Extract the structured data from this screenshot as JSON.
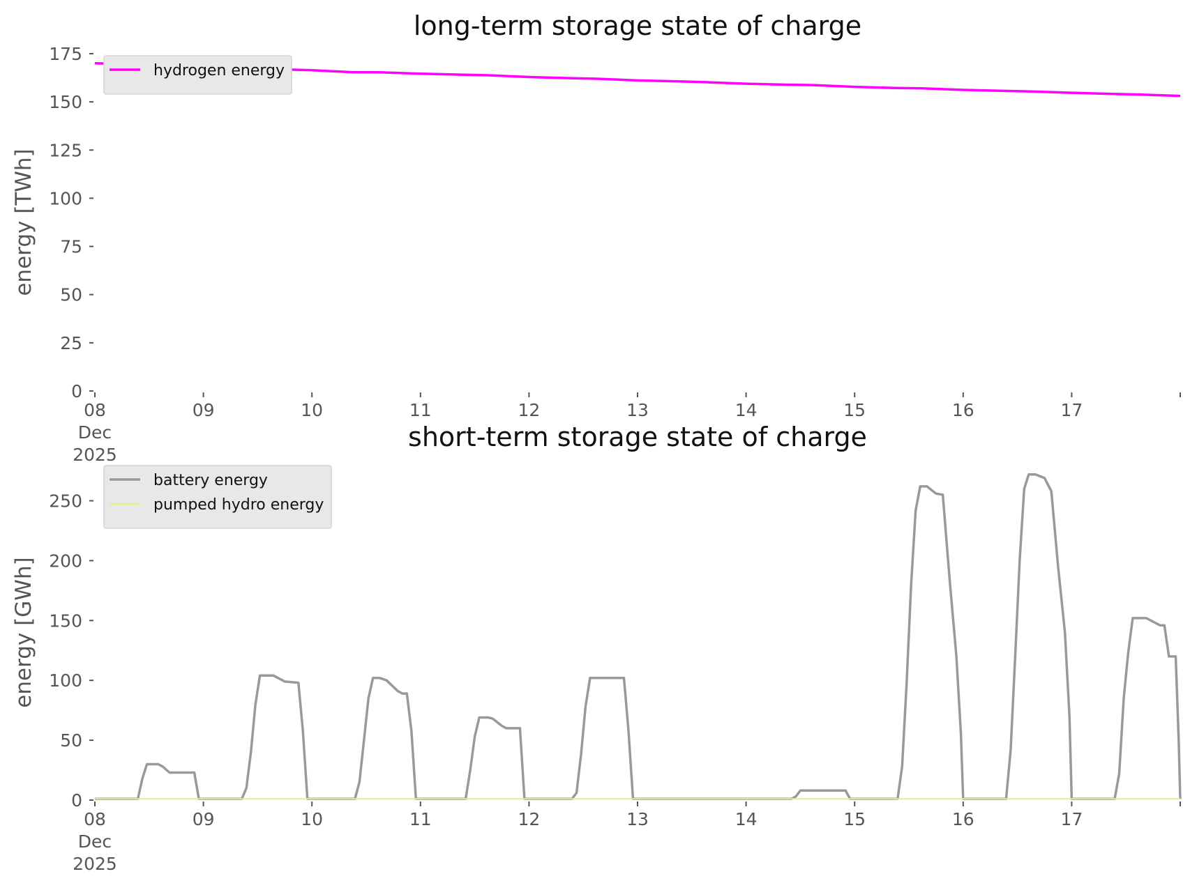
{
  "chart_data": [
    {
      "type": "line",
      "title": "long-term storage state of charge",
      "ylabel": "energy [TWh]",
      "xlabel": "",
      "ylim": [
        0,
        175
      ],
      "yticks": [
        0,
        25,
        50,
        75,
        100,
        125,
        150,
        175
      ],
      "xrange": [
        "2025-12-08",
        "2025-12-18"
      ],
      "xticks": [
        {
          "date": "2025-12-08",
          "label": [
            "08",
            "Dec",
            "2025"
          ]
        },
        {
          "date": "2025-12-09",
          "label": [
            "09"
          ]
        },
        {
          "date": "2025-12-10",
          "label": [
            "10"
          ]
        },
        {
          "date": "2025-12-11",
          "label": [
            "11"
          ]
        },
        {
          "date": "2025-12-12",
          "label": [
            "12"
          ]
        },
        {
          "date": "2025-12-13",
          "label": [
            "13"
          ]
        },
        {
          "date": "2025-12-14",
          "label": [
            "14"
          ]
        },
        {
          "date": "2025-12-15",
          "label": [
            "15"
          ]
        },
        {
          "date": "2025-12-16",
          "label": [
            "16"
          ]
        },
        {
          "date": "2025-12-17",
          "label": [
            "17"
          ]
        },
        {
          "date": "2025-12-18",
          "label": [
            ""
          ]
        }
      ],
      "legend_position": "top-left",
      "grid": false,
      "series": [
        {
          "name": "hydrogen energy",
          "color": "#ff00ff",
          "points": [
            [
              "2025-12-08 00:00",
              170.0
            ],
            [
              "2025-12-08 12:00",
              169.2
            ],
            [
              "2025-12-09 00:00",
              167.9
            ],
            [
              "2025-12-09 12:00",
              167.2
            ],
            [
              "2025-12-10 00:00",
              166.4
            ],
            [
              "2025-12-10 09:00",
              165.4
            ],
            [
              "2025-12-10 15:00",
              165.3
            ],
            [
              "2025-12-11 00:00",
              164.6
            ],
            [
              "2025-12-11 09:00",
              164.1
            ],
            [
              "2025-12-11 15:00",
              163.8
            ],
            [
              "2025-12-12 00:00",
              162.9
            ],
            [
              "2025-12-12 09:00",
              162.3
            ],
            [
              "2025-12-12 15:00",
              162.0
            ],
            [
              "2025-12-13 00:00",
              161.1
            ],
            [
              "2025-12-13 09:00",
              160.6
            ],
            [
              "2025-12-13 15:00",
              160.2
            ],
            [
              "2025-12-14 00:00",
              159.4
            ],
            [
              "2025-12-14 09:00",
              158.9
            ],
            [
              "2025-12-14 15:00",
              158.7
            ],
            [
              "2025-12-15 00:00",
              157.8
            ],
            [
              "2025-12-15 09:00",
              157.2
            ],
            [
              "2025-12-15 15:00",
              157.0
            ],
            [
              "2025-12-16 00:00",
              156.2
            ],
            [
              "2025-12-16 09:00",
              155.7
            ],
            [
              "2025-12-16 15:00",
              155.4
            ],
            [
              "2025-12-17 00:00",
              154.7
            ],
            [
              "2025-12-17 09:00",
              154.1
            ],
            [
              "2025-12-17 15:00",
              153.8
            ],
            [
              "2025-12-18 00:00",
              153.1
            ]
          ]
        }
      ]
    },
    {
      "type": "line",
      "title": "short-term storage state of charge",
      "ylabel": "energy [GWh]",
      "xlabel": "",
      "ylim": [
        0,
        280
      ],
      "yticks": [
        0,
        50,
        100,
        150,
        200,
        250
      ],
      "xrange": [
        "2025-12-08",
        "2025-12-18"
      ],
      "xticks": [
        {
          "date": "2025-12-08",
          "label": [
            "08",
            "Dec",
            "2025"
          ]
        },
        {
          "date": "2025-12-09",
          "label": [
            "09"
          ]
        },
        {
          "date": "2025-12-10",
          "label": [
            "10"
          ]
        },
        {
          "date": "2025-12-11",
          "label": [
            "11"
          ]
        },
        {
          "date": "2025-12-12",
          "label": [
            "12"
          ]
        },
        {
          "date": "2025-12-13",
          "label": [
            "13"
          ]
        },
        {
          "date": "2025-12-14",
          "label": [
            "14"
          ]
        },
        {
          "date": "2025-12-15",
          "label": [
            "15"
          ]
        },
        {
          "date": "2025-12-16",
          "label": [
            "16"
          ]
        },
        {
          "date": "2025-12-17",
          "label": [
            "17"
          ]
        },
        {
          "date": "2025-12-18",
          "label": [
            ""
          ]
        }
      ],
      "legend_position": "top-left",
      "grid": false,
      "series": [
        {
          "name": "battery energy",
          "color": "#999999",
          "points": [
            [
              "2025-12-08 00:00",
              1
            ],
            [
              "2025-12-08 09:30",
              1
            ],
            [
              "2025-12-08 10:30",
              18
            ],
            [
              "2025-12-08 11:30",
              30
            ],
            [
              "2025-12-08 14:00",
              30
            ],
            [
              "2025-12-08 15:00",
              28
            ],
            [
              "2025-12-08 16:30",
              23
            ],
            [
              "2025-12-08 22:00",
              23
            ],
            [
              "2025-12-08 23:00",
              1
            ],
            [
              "2025-12-09 08:30",
              1
            ],
            [
              "2025-12-09 09:30",
              10
            ],
            [
              "2025-12-09 10:30",
              40
            ],
            [
              "2025-12-09 11:30",
              80
            ],
            [
              "2025-12-09 12:30",
              104
            ],
            [
              "2025-12-09 15:30",
              104
            ],
            [
              "2025-12-09 18:00",
              99
            ],
            [
              "2025-12-09 21:00",
              98
            ],
            [
              "2025-12-09 22:00",
              58
            ],
            [
              "2025-12-09 23:00",
              1
            ],
            [
              "2025-12-10 09:30",
              1
            ],
            [
              "2025-12-10 10:30",
              15
            ],
            [
              "2025-12-10 11:30",
              50
            ],
            [
              "2025-12-10 12:30",
              85
            ],
            [
              "2025-12-10 13:30",
              102
            ],
            [
              "2025-12-10 15:00",
              102
            ],
            [
              "2025-12-10 16:30",
              100
            ],
            [
              "2025-12-10 19:00",
              91
            ],
            [
              "2025-12-10 20:00",
              89
            ],
            [
              "2025-12-10 21:00",
              89
            ],
            [
              "2025-12-10 22:00",
              58
            ],
            [
              "2025-12-10 23:00",
              1
            ],
            [
              "2025-12-11 10:00",
              1
            ],
            [
              "2025-12-11 11:00",
              25
            ],
            [
              "2025-12-11 12:00",
              53
            ],
            [
              "2025-12-11 13:00",
              69
            ],
            [
              "2025-12-11 15:00",
              69
            ],
            [
              "2025-12-11 16:00",
              68
            ],
            [
              "2025-12-11 18:00",
              62
            ],
            [
              "2025-12-11 19:00",
              60
            ],
            [
              "2025-12-11 22:00",
              60
            ],
            [
              "2025-12-11 23:00",
              1
            ],
            [
              "2025-12-12 09:30",
              1
            ],
            [
              "2025-12-12 10:30",
              6
            ],
            [
              "2025-12-12 11:30",
              38
            ],
            [
              "2025-12-12 12:30",
              78
            ],
            [
              "2025-12-12 13:30",
              102
            ],
            [
              "2025-12-12 16:00",
              102
            ],
            [
              "2025-12-12 21:00",
              102
            ],
            [
              "2025-12-12 22:00",
              58
            ],
            [
              "2025-12-12 23:00",
              1
            ],
            [
              "2025-12-14 10:00",
              1
            ],
            [
              "2025-12-14 11:00",
              3
            ],
            [
              "2025-12-14 12:00",
              8
            ],
            [
              "2025-12-14 22:00",
              8
            ],
            [
              "2025-12-14 23:00",
              1
            ],
            [
              "2025-12-15 09:30",
              1
            ],
            [
              "2025-12-15 10:30",
              28
            ],
            [
              "2025-12-15 11:30",
              98
            ],
            [
              "2025-12-15 12:30",
              180
            ],
            [
              "2025-12-15 13:30",
              242
            ],
            [
              "2025-12-15 14:30",
              262
            ],
            [
              "2025-12-15 16:00",
              262
            ],
            [
              "2025-12-15 18:00",
              256
            ],
            [
              "2025-12-15 19:30",
              255
            ],
            [
              "2025-12-15 21:00",
              185
            ],
            [
              "2025-12-15 22:30",
              120
            ],
            [
              "2025-12-15 23:30",
              55
            ],
            [
              "2025-12-16 00:00",
              1
            ],
            [
              "2025-12-16 09:30",
              1
            ],
            [
              "2025-12-16 10:30",
              42
            ],
            [
              "2025-12-16 11:30",
              120
            ],
            [
              "2025-12-16 12:30",
              200
            ],
            [
              "2025-12-16 13:30",
              260
            ],
            [
              "2025-12-16 14:30",
              272
            ],
            [
              "2025-12-16 16:00",
              272
            ],
            [
              "2025-12-16 18:00",
              269
            ],
            [
              "2025-12-16 19:30",
              258
            ],
            [
              "2025-12-16 21:00",
              195
            ],
            [
              "2025-12-16 22:30",
              140
            ],
            [
              "2025-12-16 23:30",
              70
            ],
            [
              "2025-12-17 00:00",
              1
            ],
            [
              "2025-12-17 09:30",
              1
            ],
            [
              "2025-12-17 10:30",
              22
            ],
            [
              "2025-12-17 11:30",
              85
            ],
            [
              "2025-12-17 12:30",
              123
            ],
            [
              "2025-12-17 13:30",
              152
            ],
            [
              "2025-12-17 16:30",
              152
            ],
            [
              "2025-12-17 18:00",
              149
            ],
            [
              "2025-12-17 19:30",
              146
            ],
            [
              "2025-12-17 20:30",
              146
            ],
            [
              "2025-12-17 21:30",
              120
            ],
            [
              "2025-12-17 23:00",
              120
            ],
            [
              "2025-12-17 23:40",
              50
            ],
            [
              "2025-12-18 00:00",
              1
            ]
          ]
        },
        {
          "name": "pumped hydro energy",
          "color": "#d9f2a0",
          "points": [
            [
              "2025-12-08 00:00",
              1.0
            ],
            [
              "2025-12-18 00:00",
              1.0
            ]
          ]
        }
      ]
    }
  ]
}
